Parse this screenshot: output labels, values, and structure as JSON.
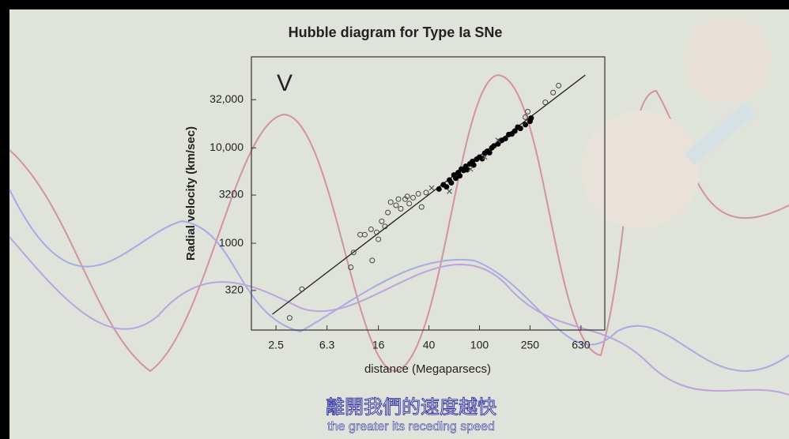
{
  "chart_data": {
    "type": "scatter",
    "title": "Hubble diagram for Type Ia SNe",
    "annotation": "V",
    "x_label": "distance (Megaparsecs)",
    "y_label": "Radial velocity (km/sec)",
    "xlog": true,
    "ylog": true,
    "grid": false,
    "xlim": [
      1.6,
      970
    ],
    "ylim": [
      123,
      90000
    ],
    "xticks": [
      2.5,
      6.3,
      16,
      40,
      100,
      250,
      630
    ],
    "yticks": [
      320,
      1000,
      3200,
      {
        "value": 10000,
        "label": "10,000"
      },
      {
        "value": 32000,
        "label": "32,000"
      }
    ],
    "series": [
      {
        "marker": "open-circle",
        "color": "#444444",
        "x": [
          3.2,
          4.0,
          9.7,
          10.2,
          14.3,
          11.5,
          12.5,
          14,
          15.5,
          17,
          16,
          18,
          19,
          20,
          22,
          24,
          23,
          26,
          28,
          27,
          30,
          33,
          35,
          38,
          230,
          240,
          330,
          380,
          420
        ],
        "values": [
          165,
          330,
          560,
          800,
          660,
          1230,
          1230,
          1400,
          1300,
          1700,
          1100,
          1500,
          2100,
          2700,
          2500,
          2300,
          2900,
          2900,
          2600,
          3100,
          3000,
          3300,
          2400,
          3400,
          21000,
          24000,
          30000,
          38000,
          45000
        ]
      },
      {
        "marker": "filled-circle",
        "color": "#000000",
        "x": [
          48,
          52,
          55,
          58,
          60,
          63,
          65,
          68,
          70,
          72,
          75,
          78,
          80,
          84,
          88,
          90,
          95,
          100,
          105,
          110,
          115,
          120,
          125,
          130,
          140,
          145,
          150,
          160,
          170,
          180,
          190,
          200,
          210,
          230,
          250,
          255
        ],
        "values": [
          3700,
          4100,
          3900,
          4600,
          4300,
          5200,
          4800,
          5500,
          5100,
          6000,
          5800,
          6400,
          5900,
          6800,
          7200,
          6600,
          7600,
          8000,
          7700,
          8800,
          9200,
          8900,
          10000,
          10500,
          11000,
          11800,
          12000,
          12500,
          13800,
          14000,
          15000,
          16500,
          16000,
          17500,
          19000,
          20500
        ]
      },
      {
        "marker": "cross",
        "color": "#555555",
        "x": [
          42,
          58,
          85,
          110,
          140
        ],
        "values": [
          3800,
          3500,
          6000,
          8000,
          12000
        ]
      }
    ],
    "fit_line": {
      "color": "#222222",
      "x": [
        2.34,
        681
      ],
      "y": [
        180,
        58000
      ]
    }
  },
  "subtitles": [
    "離開我們的速度越快",
    "the greater its receding speed"
  ]
}
